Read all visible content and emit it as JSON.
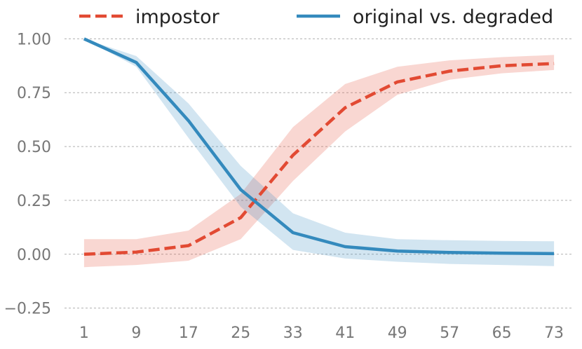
{
  "chart_data": {
    "type": "line",
    "title": "",
    "xlabel": "",
    "ylabel": "",
    "x": [
      1,
      9,
      17,
      25,
      33,
      41,
      49,
      57,
      65,
      73
    ],
    "xlim": [
      -2,
      76
    ],
    "ylim": [
      -0.3,
      1.05
    ],
    "yticks": [
      -0.25,
      0.0,
      0.25,
      0.5,
      0.75,
      1.0
    ],
    "ytick_labels": [
      "−0.25",
      "0.00",
      "0.25",
      "0.50",
      "0.75",
      "1.00"
    ],
    "xtick_labels": [
      "1",
      "9",
      "17",
      "25",
      "33",
      "41",
      "49",
      "57",
      "65",
      "73"
    ],
    "grid": "horizontal dashed",
    "legend_position": "top",
    "series": [
      {
        "name": "impostor",
        "color": "#e24a33",
        "style": "dashed",
        "values": [
          0.0,
          0.01,
          0.04,
          0.17,
          0.46,
          0.68,
          0.8,
          0.85,
          0.875,
          0.885
        ],
        "lower": [
          -0.06,
          -0.05,
          -0.03,
          0.07,
          0.34,
          0.57,
          0.74,
          0.81,
          0.84,
          0.855
        ],
        "upper": [
          0.07,
          0.07,
          0.11,
          0.28,
          0.59,
          0.79,
          0.87,
          0.9,
          0.915,
          0.925
        ]
      },
      {
        "name": "original vs. degraded",
        "color": "#348abd",
        "style": "solid",
        "values": [
          1.0,
          0.89,
          0.62,
          0.3,
          0.1,
          0.035,
          0.015,
          0.008,
          0.005,
          0.003
        ],
        "lower": [
          1.0,
          0.87,
          0.54,
          0.22,
          0.02,
          -0.02,
          -0.035,
          -0.045,
          -0.05,
          -0.055
        ],
        "upper": [
          1.0,
          0.92,
          0.7,
          0.41,
          0.19,
          0.1,
          0.07,
          0.065,
          0.062,
          0.06
        ]
      }
    ]
  }
}
